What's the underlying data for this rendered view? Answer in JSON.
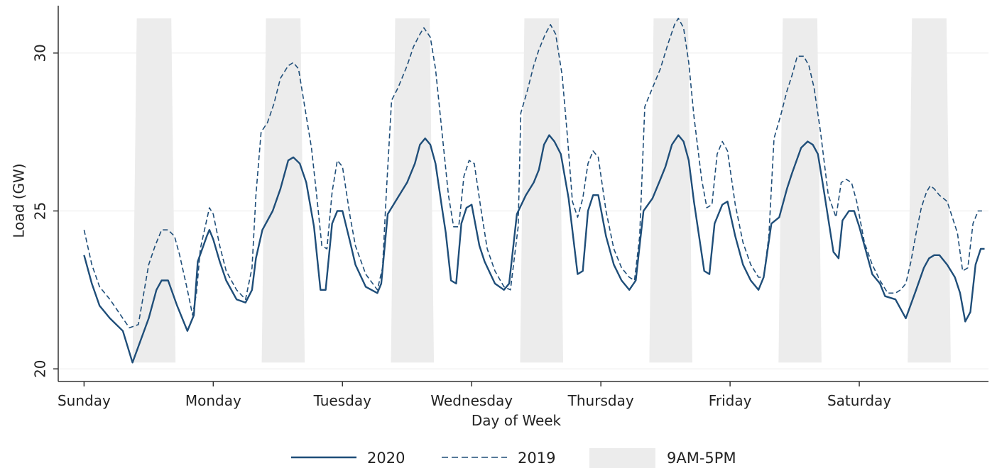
{
  "chart_data": {
    "type": "line",
    "title": "",
    "xlabel": "Day of Week",
    "ylabel": "Load (GW)",
    "xlim": [
      -0.2,
      7.0
    ],
    "ylim": [
      19.6,
      31.5
    ],
    "x_ticks": [
      {
        "value": 0,
        "label": "Sunday"
      },
      {
        "value": 1,
        "label": "Monday"
      },
      {
        "value": 2,
        "label": "Tuesday"
      },
      {
        "value": 3,
        "label": "Wednesday"
      },
      {
        "value": 4,
        "label": "Thursday"
      },
      {
        "value": 5,
        "label": "Friday"
      },
      {
        "value": 6,
        "label": "Saturday"
      }
    ],
    "y_ticks": [
      20,
      25,
      30
    ],
    "grid": "horizontal",
    "colors": {
      "line": "#1f4e79",
      "shade": "#ececec",
      "grid": "#ededed",
      "axis": "#333333"
    },
    "shaded_label": "9AM-5PM",
    "shaded_regions": [
      {
        "start": 0.375,
        "end": 0.708,
        "ymin": 20.2,
        "ymax": 31.1
      },
      {
        "start": 1.375,
        "end": 1.708,
        "ymin": 20.2,
        "ymax": 31.1
      },
      {
        "start": 2.375,
        "end": 2.708,
        "ymin": 20.2,
        "ymax": 31.1
      },
      {
        "start": 3.375,
        "end": 3.708,
        "ymin": 20.2,
        "ymax": 31.1
      },
      {
        "start": 4.375,
        "end": 4.708,
        "ymin": 20.2,
        "ymax": 31.1
      },
      {
        "start": 5.375,
        "end": 5.708,
        "ymin": 20.2,
        "ymax": 31.1
      },
      {
        "start": 6.375,
        "end": 6.708,
        "ymin": 20.2,
        "ymax": 31.1
      }
    ],
    "legend": {
      "position": "bottom",
      "entries": [
        "2020",
        "2019",
        "9AM-5PM"
      ]
    },
    "series": [
      {
        "name": "2020",
        "style": "solid",
        "points": [
          [
            0.0,
            23.6
          ],
          [
            0.06,
            22.7
          ],
          [
            0.12,
            22.0
          ],
          [
            0.2,
            21.6
          ],
          [
            0.3,
            21.2
          ],
          [
            0.375,
            20.2
          ],
          [
            0.5,
            21.6
          ],
          [
            0.56,
            22.5
          ],
          [
            0.6,
            22.8
          ],
          [
            0.65,
            22.8
          ],
          [
            0.72,
            22.0
          ],
          [
            0.8,
            21.2
          ],
          [
            0.85,
            21.7
          ],
          [
            0.88,
            23.4
          ],
          [
            0.95,
            24.2
          ],
          [
            0.97,
            24.4
          ],
          [
            1.0,
            24.1
          ],
          [
            1.05,
            23.4
          ],
          [
            1.1,
            22.8
          ],
          [
            1.18,
            22.2
          ],
          [
            1.25,
            22.1
          ],
          [
            1.3,
            22.5
          ],
          [
            1.33,
            23.5
          ],
          [
            1.38,
            24.4
          ],
          [
            1.46,
            25.0
          ],
          [
            1.52,
            25.7
          ],
          [
            1.58,
            26.6
          ],
          [
            1.62,
            26.7
          ],
          [
            1.67,
            26.5
          ],
          [
            1.72,
            25.9
          ],
          [
            1.78,
            24.5
          ],
          [
            1.83,
            22.5
          ],
          [
            1.87,
            22.5
          ],
          [
            1.92,
            24.6
          ],
          [
            1.96,
            25.0
          ],
          [
            2.0,
            25.0
          ],
          [
            2.06,
            24.0
          ],
          [
            2.1,
            23.3
          ],
          [
            2.18,
            22.6
          ],
          [
            2.27,
            22.4
          ],
          [
            2.3,
            22.7
          ],
          [
            2.35,
            24.9
          ],
          [
            2.44,
            25.5
          ],
          [
            2.5,
            25.9
          ],
          [
            2.56,
            26.5
          ],
          [
            2.6,
            27.1
          ],
          [
            2.64,
            27.3
          ],
          [
            2.68,
            27.1
          ],
          [
            2.72,
            26.5
          ],
          [
            2.77,
            25.1
          ],
          [
            2.8,
            24.3
          ],
          [
            2.84,
            22.8
          ],
          [
            2.88,
            22.7
          ],
          [
            2.92,
            24.6
          ],
          [
            2.96,
            25.1
          ],
          [
            3.0,
            25.2
          ],
          [
            3.06,
            23.9
          ],
          [
            3.1,
            23.4
          ],
          [
            3.18,
            22.7
          ],
          [
            3.25,
            22.5
          ],
          [
            3.29,
            22.7
          ],
          [
            3.35,
            24.9
          ],
          [
            3.42,
            25.5
          ],
          [
            3.48,
            25.9
          ],
          [
            3.52,
            26.3
          ],
          [
            3.56,
            27.1
          ],
          [
            3.6,
            27.4
          ],
          [
            3.64,
            27.2
          ],
          [
            3.69,
            26.8
          ],
          [
            3.75,
            25.4
          ],
          [
            3.82,
            23.0
          ],
          [
            3.86,
            23.1
          ],
          [
            3.9,
            25.0
          ],
          [
            3.94,
            25.5
          ],
          [
            3.98,
            25.5
          ],
          [
            4.04,
            24.2
          ],
          [
            4.1,
            23.3
          ],
          [
            4.16,
            22.8
          ],
          [
            4.22,
            22.5
          ],
          [
            4.27,
            22.8
          ],
          [
            4.33,
            25.0
          ],
          [
            4.4,
            25.4
          ],
          [
            4.46,
            26.0
          ],
          [
            4.5,
            26.4
          ],
          [
            4.55,
            27.1
          ],
          [
            4.6,
            27.4
          ],
          [
            4.64,
            27.2
          ],
          [
            4.68,
            26.6
          ],
          [
            4.72,
            25.3
          ],
          [
            4.8,
            23.1
          ],
          [
            4.84,
            23.0
          ],
          [
            4.88,
            24.6
          ],
          [
            4.94,
            25.2
          ],
          [
            4.98,
            25.3
          ],
          [
            5.04,
            24.2
          ],
          [
            5.1,
            23.3
          ],
          [
            5.16,
            22.8
          ],
          [
            5.22,
            22.5
          ],
          [
            5.26,
            22.9
          ],
          [
            5.32,
            24.6
          ],
          [
            5.38,
            24.8
          ],
          [
            5.44,
            25.7
          ],
          [
            5.48,
            26.2
          ],
          [
            5.55,
            27.0
          ],
          [
            5.6,
            27.2
          ],
          [
            5.64,
            27.1
          ],
          [
            5.68,
            26.8
          ],
          [
            5.72,
            25.8
          ],
          [
            5.8,
            23.7
          ],
          [
            5.84,
            23.5
          ],
          [
            5.87,
            24.7
          ],
          [
            5.92,
            25.0
          ],
          [
            5.96,
            25.0
          ],
          [
            6.0,
            24.5
          ],
          [
            6.06,
            23.6
          ],
          [
            6.1,
            23.0
          ],
          [
            6.16,
            22.7
          ],
          [
            6.2,
            22.3
          ],
          [
            6.28,
            22.2
          ],
          [
            6.32,
            21.9
          ],
          [
            6.36,
            21.6
          ],
          [
            6.44,
            22.5
          ],
          [
            6.5,
            23.2
          ],
          [
            6.54,
            23.5
          ],
          [
            6.58,
            23.6
          ],
          [
            6.62,
            23.6
          ],
          [
            6.68,
            23.3
          ],
          [
            6.74,
            22.9
          ],
          [
            6.78,
            22.4
          ],
          [
            6.82,
            21.5
          ],
          [
            6.86,
            21.8
          ],
          [
            6.9,
            23.3
          ],
          [
            6.94,
            23.8
          ],
          [
            6.97,
            23.8
          ]
        ]
      },
      {
        "name": "2019",
        "style": "dashed",
        "points": [
          [
            0.0,
            24.4
          ],
          [
            0.06,
            23.3
          ],
          [
            0.12,
            22.6
          ],
          [
            0.2,
            22.2
          ],
          [
            0.3,
            21.6
          ],
          [
            0.35,
            21.3
          ],
          [
            0.42,
            21.4
          ],
          [
            0.5,
            23.3
          ],
          [
            0.55,
            23.9
          ],
          [
            0.6,
            24.4
          ],
          [
            0.65,
            24.4
          ],
          [
            0.7,
            24.2
          ],
          [
            0.74,
            23.6
          ],
          [
            0.8,
            22.5
          ],
          [
            0.84,
            21.7
          ],
          [
            0.87,
            22.4
          ],
          [
            0.9,
            23.8
          ],
          [
            0.97,
            25.1
          ],
          [
            1.0,
            24.9
          ],
          [
            1.05,
            23.9
          ],
          [
            1.1,
            23.1
          ],
          [
            1.18,
            22.5
          ],
          [
            1.25,
            22.2
          ],
          [
            1.3,
            23.2
          ],
          [
            1.33,
            25.5
          ],
          [
            1.37,
            27.5
          ],
          [
            1.42,
            27.8
          ],
          [
            1.47,
            28.4
          ],
          [
            1.52,
            29.2
          ],
          [
            1.58,
            29.6
          ],
          [
            1.62,
            29.7
          ],
          [
            1.66,
            29.5
          ],
          [
            1.72,
            28.0
          ],
          [
            1.76,
            27.0
          ],
          [
            1.8,
            25.5
          ],
          [
            1.84,
            23.9
          ],
          [
            1.88,
            23.8
          ],
          [
            1.92,
            25.6
          ],
          [
            1.96,
            26.6
          ],
          [
            2.0,
            26.4
          ],
          [
            2.06,
            24.8
          ],
          [
            2.1,
            23.9
          ],
          [
            2.18,
            23.0
          ],
          [
            2.27,
            22.5
          ],
          [
            2.31,
            23.2
          ],
          [
            2.34,
            25.6
          ],
          [
            2.38,
            28.5
          ],
          [
            2.43,
            28.9
          ],
          [
            2.5,
            29.6
          ],
          [
            2.55,
            30.2
          ],
          [
            2.6,
            30.6
          ],
          [
            2.63,
            30.8
          ],
          [
            2.68,
            30.5
          ],
          [
            2.72,
            29.5
          ],
          [
            2.77,
            27.5
          ],
          [
            2.82,
            25.5
          ],
          [
            2.86,
            24.5
          ],
          [
            2.9,
            24.5
          ],
          [
            2.94,
            26.1
          ],
          [
            2.98,
            26.6
          ],
          [
            3.02,
            26.5
          ],
          [
            3.07,
            25.1
          ],
          [
            3.12,
            23.8
          ],
          [
            3.18,
            23.1
          ],
          [
            3.25,
            22.6
          ],
          [
            3.3,
            22.5
          ],
          [
            3.36,
            24.5
          ],
          [
            3.38,
            28.1
          ],
          [
            3.43,
            28.8
          ],
          [
            3.48,
            29.6
          ],
          [
            3.52,
            30.1
          ],
          [
            3.57,
            30.6
          ],
          [
            3.61,
            30.9
          ],
          [
            3.65,
            30.6
          ],
          [
            3.7,
            29.3
          ],
          [
            3.74,
            27.4
          ],
          [
            3.78,
            25.3
          ],
          [
            3.82,
            24.8
          ],
          [
            3.86,
            25.4
          ],
          [
            3.9,
            26.5
          ],
          [
            3.94,
            26.9
          ],
          [
            3.98,
            26.7
          ],
          [
            4.04,
            25.0
          ],
          [
            4.1,
            23.8
          ],
          [
            4.16,
            23.2
          ],
          [
            4.22,
            22.9
          ],
          [
            4.26,
            22.8
          ],
          [
            4.3,
            24.2
          ],
          [
            4.34,
            28.3
          ],
          [
            4.4,
            28.9
          ],
          [
            4.46,
            29.5
          ],
          [
            4.52,
            30.3
          ],
          [
            4.57,
            30.9
          ],
          [
            4.6,
            31.1
          ],
          [
            4.64,
            30.8
          ],
          [
            4.68,
            29.7
          ],
          [
            4.72,
            28.0
          ],
          [
            4.78,
            26.0
          ],
          [
            4.82,
            25.1
          ],
          [
            4.86,
            25.2
          ],
          [
            4.9,
            26.8
          ],
          [
            4.94,
            27.2
          ],
          [
            4.98,
            26.9
          ],
          [
            5.04,
            25.2
          ],
          [
            5.1,
            24.0
          ],
          [
            5.16,
            23.3
          ],
          [
            5.22,
            22.9
          ],
          [
            5.26,
            22.9
          ],
          [
            5.3,
            24.2
          ],
          [
            5.34,
            27.3
          ],
          [
            5.39,
            28.0
          ],
          [
            5.44,
            28.8
          ],
          [
            5.48,
            29.3
          ],
          [
            5.52,
            29.9
          ],
          [
            5.57,
            29.9
          ],
          [
            5.61,
            29.6
          ],
          [
            5.65,
            28.9
          ],
          [
            5.7,
            27.5
          ],
          [
            5.76,
            25.5
          ],
          [
            5.82,
            24.8
          ],
          [
            5.86,
            25.9
          ],
          [
            5.9,
            26.0
          ],
          [
            5.94,
            25.9
          ],
          [
            5.98,
            25.3
          ],
          [
            6.04,
            24.0
          ],
          [
            6.1,
            23.3
          ],
          [
            6.16,
            22.8
          ],
          [
            6.22,
            22.4
          ],
          [
            6.28,
            22.4
          ],
          [
            6.32,
            22.5
          ],
          [
            6.36,
            22.7
          ],
          [
            6.4,
            23.4
          ],
          [
            6.44,
            24.3
          ],
          [
            6.48,
            25.1
          ],
          [
            6.52,
            25.6
          ],
          [
            6.55,
            25.8
          ],
          [
            6.58,
            25.7
          ],
          [
            6.62,
            25.5
          ],
          [
            6.68,
            25.3
          ],
          [
            6.72,
            24.8
          ],
          [
            6.76,
            24.3
          ],
          [
            6.8,
            23.1
          ],
          [
            6.84,
            23.2
          ],
          [
            6.88,
            24.6
          ],
          [
            6.92,
            25.0
          ],
          [
            6.95,
            25.0
          ]
        ]
      }
    ]
  }
}
